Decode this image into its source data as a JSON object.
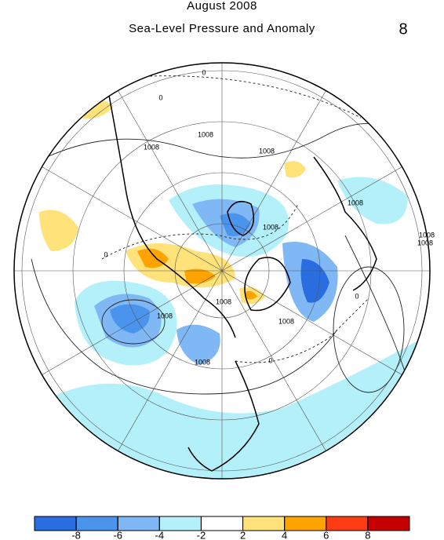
{
  "header": {
    "title": "August 2008",
    "subtitle": "Sea-Level Pressure and Anomaly",
    "panel": "8"
  },
  "contour_labels": [
    "0",
    "0",
    "1008",
    "1008",
    "1008",
    "1008",
    "1008",
    "1008",
    "0",
    "1008",
    "1008",
    "1008",
    "1008",
    "1008",
    "0",
    "0"
  ],
  "colorbar": {
    "colors": [
      "#2a6de0",
      "#4a94ee",
      "#80b8f5",
      "#b4f0fa",
      "#ffffff",
      "#ffe27a",
      "#ffa300",
      "#ff3c14",
      "#c40000"
    ],
    "ticks": [
      -8,
      -6,
      -4,
      -2,
      2,
      4,
      6,
      8
    ]
  }
}
